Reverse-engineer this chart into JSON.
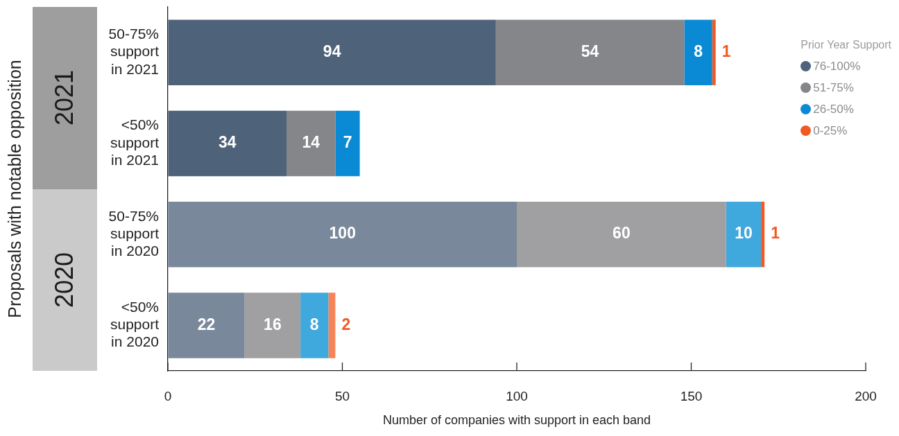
{
  "chart_data": {
    "type": "bar",
    "orientation": "horizontal",
    "stacked": true,
    "categories": [
      "50-75% support in 2021",
      "<50% support in 2021",
      "50-75% support in 2020",
      "<50% support in 2020"
    ],
    "series": [
      {
        "name": "76-100%",
        "color": "#4e6279",
        "colors": [
          "#4e6279",
          "#4e6279",
          "#7a889b",
          "#7a889b"
        ],
        "values": [
          94,
          34,
          100,
          22
        ]
      },
      {
        "name": "51-75%",
        "color": "#858689",
        "colors": [
          "#858689",
          "#858689",
          "#a0a0a2",
          "#a0a0a2"
        ],
        "values": [
          54,
          14,
          60,
          16
        ]
      },
      {
        "name": "26-50%",
        "color": "#0a8ad4",
        "colors": [
          "#0a8ad4",
          "#0a8ad4",
          "#3fa8dc",
          "#3fa8dc"
        ],
        "values": [
          8,
          7,
          10,
          8
        ]
      },
      {
        "name": "0-25%",
        "color": "#f15a24",
        "colors": [
          "#f15a24",
          "#f15a24",
          "#f15a24",
          "#f5845a"
        ],
        "values": [
          1,
          null,
          1,
          2
        ]
      }
    ],
    "xlim": [
      0,
      200
    ],
    "xticks": [
      0,
      50,
      100,
      150,
      200
    ],
    "xlabel": "Number of companies with support in each band",
    "ylabel": "Proposals with notable opposition",
    "legend_title": "Prior Year Support",
    "legend": "top right",
    "grid": false,
    "data_labels": true,
    "annotations": [
      "2021",
      "2020"
    ]
  }
}
